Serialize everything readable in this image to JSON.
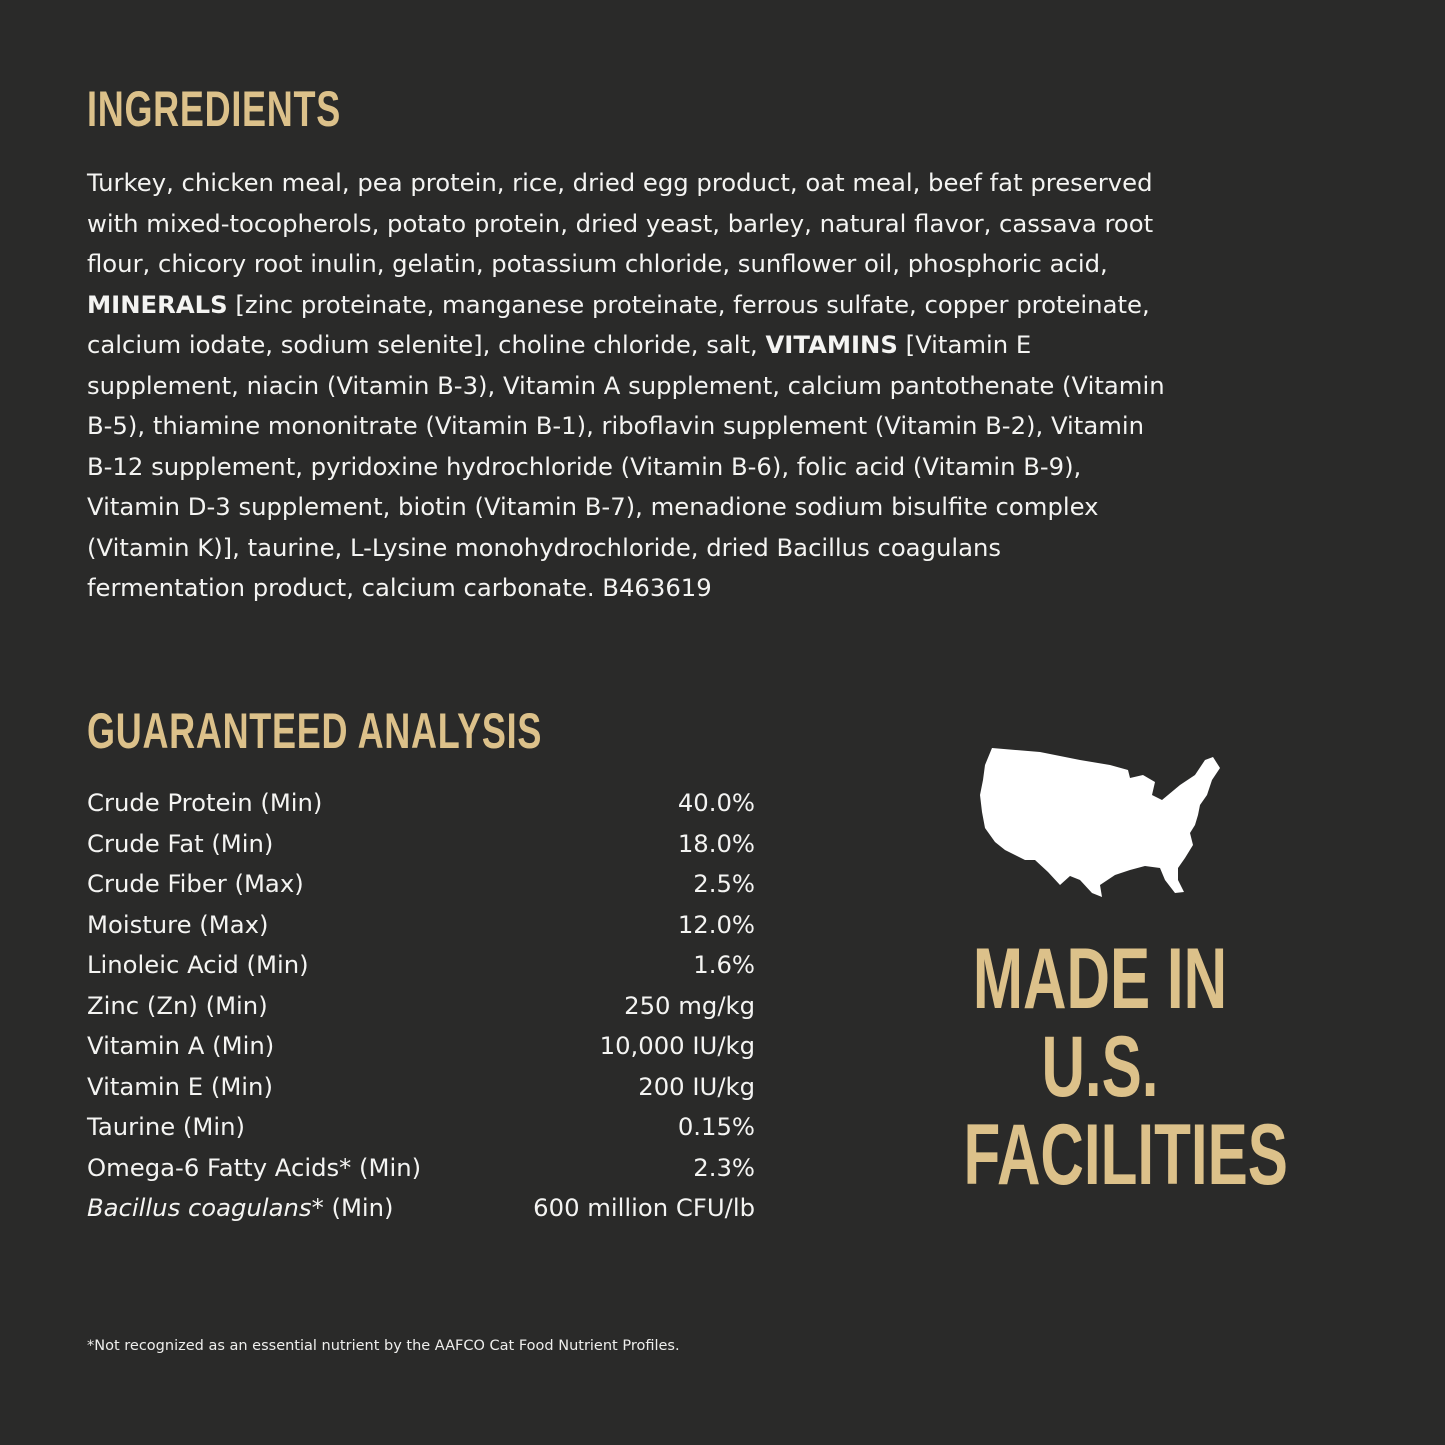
{
  "colors": {
    "background": "#2a2a29",
    "accent_gold": "#dcc18a",
    "text": "#f4f4f2"
  },
  "ingredients": {
    "title": "INGREDIENTS",
    "lines": [
      [
        {
          "text": "Turkey, chicken meal, pea protein, rice, dried egg product, oat meal, beef fat preserved",
          "bold": false
        }
      ],
      [
        {
          "text": "with mixed-tocopherols, potato protein, dried yeast, barley, natural flavor, cassava root",
          "bold": false
        }
      ],
      [
        {
          "text": "flour, chicory root inulin, gelatin, potassium chloride, sunflower oil, phosphoric acid,",
          "bold": false
        }
      ],
      [
        {
          "text": "MINERALS",
          "bold": true
        },
        {
          "text": " [zinc proteinate, manganese proteinate, ferrous sulfate, copper proteinate,",
          "bold": false
        }
      ],
      [
        {
          "text": "calcium iodate, sodium selenite], choline chloride, salt, ",
          "bold": false
        },
        {
          "text": "VITAMINS",
          "bold": true
        },
        {
          "text": " [Vitamin E",
          "bold": false
        }
      ],
      [
        {
          "text": "supplement, niacin (Vitamin B-3), Vitamin A supplement, calcium pantothenate (Vitamin",
          "bold": false
        }
      ],
      [
        {
          "text": "B-5), thiamine mononitrate (Vitamin B-1), riboflavin supplement (Vitamin B-2), Vitamin",
          "bold": false
        }
      ],
      [
        {
          "text": "B-12 supplement, pyridoxine hydrochloride (Vitamin B-6), folic acid (Vitamin B-9),",
          "bold": false
        }
      ],
      [
        {
          "text": "Vitamin D-3 supplement, biotin (Vitamin B-7), menadione sodium bisulfite complex",
          "bold": false
        }
      ],
      [
        {
          "text": "(Vitamin K)], taurine, L-Lysine monohydrochloride, dried Bacillus coagulans",
          "bold": false
        }
      ],
      [
        {
          "text": "fermentation product, calcium carbonate. B463619",
          "bold": false
        }
      ]
    ]
  },
  "analysis": {
    "title": "GUARANTEED ANALYSIS",
    "rows": [
      {
        "label": "Crude Protein (Min)",
        "value": "40.0%"
      },
      {
        "label": "Crude Fat (Min)",
        "value": "18.0%"
      },
      {
        "label": "Crude Fiber (Max)",
        "value": "2.5%"
      },
      {
        "label": "Moisture (Max)",
        "value": "12.0%"
      },
      {
        "label": "Linoleic Acid (Min)",
        "value": "1.6%"
      },
      {
        "label": "Zinc (Zn) (Min)",
        "value": "250 mg/kg"
      },
      {
        "label": "Vitamin A (Min)",
        "value": "10,000 IU/kg"
      },
      {
        "label": "Vitamin E (Min)",
        "value": "200 IU/kg"
      },
      {
        "label": "Taurine (Min)",
        "value": "0.15%"
      },
      {
        "label": "Omega-6 Fatty Acids* (Min)",
        "value": "2.3%"
      },
      {
        "label_italic": "Bacillus coagulans",
        "label": "* (Min)",
        "value": "600 million CFU/lb"
      }
    ]
  },
  "badge": {
    "icon": "usa-map-icon",
    "lines": [
      "MADE IN",
      "U.S.",
      "FACILITIES"
    ]
  },
  "footnote": "*Not recognized as an essential nutrient by the AAFCO Cat Food Nutrient Profiles."
}
